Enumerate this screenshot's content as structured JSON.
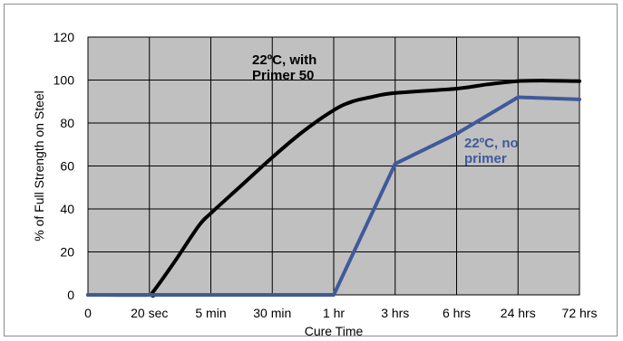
{
  "chart_data": {
    "type": "line",
    "title": "",
    "xlabel": "Cure Time",
    "ylabel": "% of Full Strength on Steel",
    "categories": [
      "0",
      "20 sec",
      "5 min",
      "30 min",
      "1 hr",
      "3 hrs",
      "6 hrs",
      "24 hrs",
      "72 hrs"
    ],
    "ylim": [
      0,
      120
    ],
    "yticks": [
      "0",
      "20",
      "40",
      "60",
      "80",
      "100",
      "120"
    ],
    "grid": true,
    "plot_background": "#c0c0c0",
    "series": [
      {
        "annotation_lines": [
          "22ºC, with",
          "Primer 50"
        ],
        "color": "#000000",
        "points": [
          [
            0,
            0
          ],
          [
            1,
            0
          ],
          [
            1.05,
            1
          ],
          [
            1.4,
            15
          ],
          [
            1.8,
            32
          ],
          [
            2,
            38
          ],
          [
            2.5,
            51
          ],
          [
            3,
            64
          ],
          [
            3.5,
            76
          ],
          [
            4,
            86
          ],
          [
            4.3,
            90
          ],
          [
            4.6,
            92
          ],
          [
            5,
            94
          ],
          [
            6,
            96
          ],
          [
            6.5,
            98
          ],
          [
            7,
            99.5
          ],
          [
            7.5,
            99.7
          ],
          [
            8,
            99.5
          ]
        ]
      },
      {
        "annotation_lines": [
          "22ºC, no",
          "primer"
        ],
        "color": "#3f5a9a",
        "points": [
          [
            0,
            0
          ],
          [
            4,
            0
          ],
          [
            5,
            61
          ],
          [
            6,
            75
          ],
          [
            7,
            92
          ],
          [
            8,
            91
          ]
        ]
      }
    ]
  }
}
